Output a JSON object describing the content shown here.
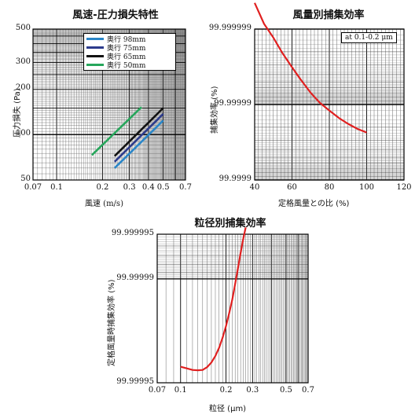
{
  "chart_data": [
    {
      "type": "line",
      "title": "風速-圧力損失特性",
      "xlabel": "風速 (m/s)",
      "ylabel": "圧力損失 (Pa)",
      "xscale": "log",
      "yscale": "log",
      "xlim": [
        0.07,
        0.7
      ],
      "ylim": [
        50,
        500
      ],
      "xticks": [
        "0.07",
        "0.1",
        "0.2",
        "0.3",
        "0.4",
        "0.5",
        "0.7"
      ],
      "yticks": [
        "500",
        "300",
        "200",
        "100",
        "50"
      ],
      "legend_position": "top-right",
      "grid": true,
      "series": [
        {
          "name": "奥行 98mm",
          "color": "#2a86c8",
          "x": [
            0.24,
            0.5
          ],
          "y": [
            60,
            124
          ]
        },
        {
          "name": "奥行 75mm",
          "color": "#2c3b8c",
          "x": [
            0.24,
            0.5
          ],
          "y": [
            66,
            137
          ]
        },
        {
          "name": "奥行 65mm",
          "color": "#111111",
          "x": [
            0.24,
            0.5
          ],
          "y": [
            72,
            150
          ]
        },
        {
          "name": "奥行 50mm",
          "color": "#26a65b",
          "x": [
            0.17,
            0.36
          ],
          "y": [
            73,
            152
          ]
        }
      ]
    },
    {
      "type": "line",
      "title": "風量別捕集効率",
      "xlabel": "定格風量との比 (%)",
      "ylabel": "捕集効率 (%)",
      "xlim": [
        40,
        120
      ],
      "yscale": "penetration",
      "ylim": [
        "99.9999",
        "99.999999"
      ],
      "xticks": [
        "40",
        "60",
        "80",
        "100",
        "120"
      ],
      "yticks": [
        "99.999999",
        "99.99999",
        "99.9999"
      ],
      "annotation": "at 0.1-0.2 μm",
      "grid": true,
      "series": [
        {
          "color": "#e02020",
          "x": [
            40,
            45,
            50,
            55,
            60,
            65,
            70,
            75,
            80,
            85,
            90,
            95,
            100
          ],
          "y": [
            "99.99999955",
            "99.99999915",
            "99.9999987",
            "99.9999979",
            "99.9999968",
            "99.9999952",
            "99.999993",
            "99.9999905",
            "99.999988",
            "99.999985",
            "99.999982",
            "99.999979",
            "99.9999765"
          ]
        }
      ]
    },
    {
      "type": "line",
      "title": "粒径別捕集効率",
      "xlabel": "粒径 (μm)",
      "ylabel": "定格風量時捕集効率 (%)",
      "xscale": "log",
      "xlim": [
        0.07,
        0.7
      ],
      "yscale": "penetration",
      "ylim": [
        "99.99995",
        "99.999995"
      ],
      "xticks": [
        "0.07",
        "0.1",
        "0.2",
        "0.3",
        "0.5",
        "0.7"
      ],
      "yticks": [
        "99.999995",
        "99.99999",
        "99.99995"
      ],
      "grid": true,
      "series": [
        {
          "color": "#e02020",
          "x": [
            0.1,
            0.11,
            0.12,
            0.13,
            0.14,
            0.15,
            0.16,
            0.17,
            0.18,
            0.19,
            0.2,
            0.21,
            0.22,
            0.23,
            0.24,
            0.25,
            0.26,
            0.27
          ],
          "y": [
            "99.999961",
            "99.99996",
            "99.999959",
            "99.9999588",
            "99.999959",
            "99.9999608",
            "99.9999635",
            "99.999967",
            "99.999971",
            "99.9999752",
            "99.9999792",
            "99.999983",
            "99.9999862",
            "99.9999892",
            "99.9999915",
            "99.9999933",
            "99.9999946",
            "99.9999955"
          ]
        }
      ]
    }
  ]
}
